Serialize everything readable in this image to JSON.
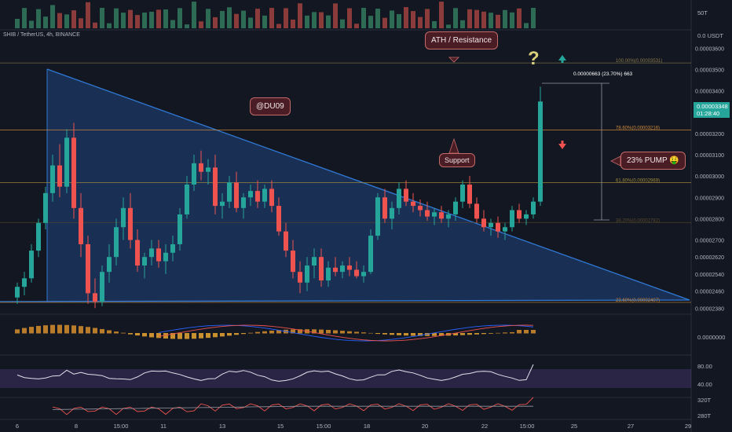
{
  "header": {
    "symbol_title": "SHIB / TetherUS, 4h, BINANCE",
    "volume_label": "50T",
    "currency_label": "0.0 USDT"
  },
  "price_axis": {
    "ticks": [
      "0.00003600",
      "0.00003500",
      "0.00003400",
      "0.00003300",
      "0.00003200",
      "0.00003100",
      "0.00003000",
      "0.00002900",
      "0.00002800",
      "0.00002700",
      "0.00002620",
      "0.00002540",
      "0.00002460",
      "0.00002380"
    ],
    "current_price": "0.00003348",
    "countdown": "01:28:40"
  },
  "time_axis": {
    "labels": [
      "6",
      "8",
      "15:00",
      "11",
      "13",
      "15",
      "15:00",
      "18",
      "20",
      "22",
      "15:00",
      "25",
      "27",
      "29"
    ]
  },
  "indicator_axes": {
    "macd_label": "0.0000000",
    "rsi_high": "80.00",
    "rsi_low": "40.00",
    "vol_label": "320T",
    "vol_label2": "280T"
  },
  "annotations": {
    "ath": "ATH / Resistance",
    "watermark": "@DU09",
    "support": "Support",
    "pump": "23% PUMP 🤑",
    "question": "?",
    "measure": "0.00000663 (23.70%) 663"
  },
  "fib_levels": [
    {
      "label": "100.00%(0.00003531)",
      "color": "#8a7a4a"
    },
    {
      "label": "78.60%(0.00003216)",
      "color": "#d08a3a"
    },
    {
      "label": "61.80%(0.00002969)",
      "color": "#a08a3a"
    },
    {
      "label": "38.20%(0.00002782)",
      "color": "#5a4a2a"
    },
    {
      "label": "23.60%(0.00002407)",
      "color": "#d08a3a"
    }
  ],
  "colors": {
    "up": "#26a69a",
    "down": "#ef5350",
    "triangle": "#2a6ec9",
    "callout_bg": "#4a1c24"
  },
  "chart_data": {
    "type": "candlestick",
    "title": "SHIB / TetherUS, 4h, BINANCE",
    "ylim": [
      2.37e-05,
      3.62e-05
    ],
    "fib_values": [
      3.531e-05,
      3.216e-05,
      2.969e-05,
      2.782e-05,
      2.407e-05
    ],
    "candles": [
      [
        2.43e-05,
        2.5e-05,
        2.4e-05,
        2.48e-05
      ],
      [
        2.48e-05,
        2.55e-05,
        2.44e-05,
        2.52e-05
      ],
      [
        2.52e-05,
        2.68e-05,
        2.5e-05,
        2.65e-05
      ],
      [
        2.65e-05,
        2.8e-05,
        2.62e-05,
        2.78e-05
      ],
      [
        2.78e-05,
        2.95e-05,
        2.75e-05,
        2.92e-05
      ],
      [
        2.92e-05,
        3.1e-05,
        2.88e-05,
        3.05e-05
      ],
      [
        3.05e-05,
        3.15e-05,
        2.9e-05,
        2.95e-05
      ],
      [
        2.95e-05,
        3.22e-05,
        2.92e-05,
        3.18e-05
      ],
      [
        3.18e-05,
        3.25e-05,
        2.8e-05,
        2.85e-05
      ],
      [
        2.85e-05,
        2.92e-05,
        2.62e-05,
        2.68e-05
      ],
      [
        2.68e-05,
        2.72e-05,
        2.4e-05,
        2.45e-05
      ],
      [
        2.45e-05,
        2.52e-05,
        2.38e-05,
        2.41e-05
      ],
      [
        2.41e-05,
        2.58e-05,
        2.39e-05,
        2.55e-05
      ],
      [
        2.55e-05,
        2.68e-05,
        2.5e-05,
        2.62e-05
      ],
      [
        2.62e-05,
        2.8e-05,
        2.58e-05,
        2.76e-05
      ],
      [
        2.76e-05,
        2.9e-05,
        2.7e-05,
        2.85e-05
      ],
      [
        2.85e-05,
        2.92e-05,
        2.66e-05,
        2.7e-05
      ],
      [
        2.7e-05,
        2.75e-05,
        2.55e-05,
        2.58e-05
      ],
      [
        2.58e-05,
        2.64e-05,
        2.52e-05,
        2.62e-05
      ],
      [
        2.62e-05,
        2.7e-05,
        2.58e-05,
        2.66e-05
      ],
      [
        2.66e-05,
        2.7e-05,
        2.57e-05,
        2.6e-05
      ],
      [
        2.6e-05,
        2.68e-05,
        2.54e-05,
        2.64e-05
      ],
      [
        2.64e-05,
        2.72e-05,
        2.6e-05,
        2.68e-05
      ],
      [
        2.68e-05,
        2.85e-05,
        2.65e-05,
        2.82e-05
      ],
      [
        2.82e-05,
        3e-05,
        2.8e-05,
        2.96e-05
      ],
      [
        2.96e-05,
        3.1e-05,
        2.93e-05,
        3.06e-05
      ],
      [
        3.06e-05,
        3.12e-05,
        2.98e-05,
        3.02e-05
      ],
      [
        3.02e-05,
        3.08e-05,
        2.96e-05,
        3.04e-05
      ],
      [
        3.04e-05,
        3.1e-05,
        2.82e-05,
        2.86e-05
      ],
      [
        2.86e-05,
        2.92e-05,
        2.8e-05,
        2.88e-05
      ],
      [
        2.88e-05,
        3e-05,
        2.85e-05,
        2.97e-05
      ],
      [
        2.97e-05,
        3.02e-05,
        2.83e-05,
        2.85e-05
      ],
      [
        2.85e-05,
        2.92e-05,
        2.8e-05,
        2.9e-05
      ],
      [
        2.9e-05,
        2.96e-05,
        2.86e-05,
        2.93e-05
      ],
      [
        2.93e-05,
        2.98e-05,
        2.85e-05,
        2.88e-05
      ],
      [
        2.88e-05,
        2.96e-05,
        2.85e-05,
        2.94e-05
      ],
      [
        2.94e-05,
        2.98e-05,
        2.83e-05,
        2.86e-05
      ],
      [
        2.86e-05,
        2.9e-05,
        2.72e-05,
        2.74e-05
      ],
      [
        2.74e-05,
        2.78e-05,
        2.62e-05,
        2.65e-05
      ],
      [
        2.65e-05,
        2.7e-05,
        2.52e-05,
        2.55e-05
      ],
      [
        2.55e-05,
        2.6e-05,
        2.45e-05,
        2.5e-05
      ],
      [
        2.5e-05,
        2.62e-05,
        2.46e-05,
        2.58e-05
      ],
      [
        2.58e-05,
        2.66e-05,
        2.52e-05,
        2.62e-05
      ],
      [
        2.62e-05,
        2.66e-05,
        2.48e-05,
        2.51e-05
      ],
      [
        2.51e-05,
        2.6e-05,
        2.48e-05,
        2.57e-05
      ],
      [
        2.57e-05,
        2.62e-05,
        2.53e-05,
        2.55e-05
      ],
      [
        2.55e-05,
        2.6e-05,
        2.52e-05,
        2.58e-05
      ],
      [
        2.58e-05,
        2.62e-05,
        2.53e-05,
        2.56e-05
      ],
      [
        2.56e-05,
        2.6e-05,
        2.52e-05,
        2.53e-05
      ],
      [
        2.53e-05,
        2.58e-05,
        2.5e-05,
        2.55e-05
      ],
      [
        2.55e-05,
        2.75e-05,
        2.54e-05,
        2.72e-05
      ],
      [
        2.72e-05,
        2.92e-05,
        2.7e-05,
        2.9e-05
      ],
      [
        2.9e-05,
        2.94e-05,
        2.78e-05,
        2.8e-05
      ],
      [
        2.8e-05,
        2.88e-05,
        2.75e-05,
        2.85e-05
      ],
      [
        2.85e-05,
        2.97e-05,
        2.82e-05,
        2.94e-05
      ],
      [
        2.94e-05,
        2.98e-05,
        2.86e-05,
        2.88e-05
      ],
      [
        2.88e-05,
        2.92e-05,
        2.83e-05,
        2.86e-05
      ],
      [
        2.86e-05,
        2.89e-05,
        2.81e-05,
        2.84e-05
      ],
      [
        2.84e-05,
        2.88e-05,
        2.79e-05,
        2.81e-05
      ],
      [
        2.81e-05,
        2.85e-05,
        2.77e-05,
        2.83e-05
      ],
      [
        2.83e-05,
        2.86e-05,
        2.78e-05,
        2.8e-05
      ],
      [
        2.8e-05,
        2.84e-05,
        2.76e-05,
        2.82e-05
      ],
      [
        2.82e-05,
        2.9e-05,
        2.79e-05,
        2.88e-05
      ],
      [
        2.88e-05,
        2.98e-05,
        2.85e-05,
        2.96e-05
      ],
      [
        2.96e-05,
        3e-05,
        2.85e-05,
        2.87e-05
      ],
      [
        2.87e-05,
        2.9e-05,
        2.78e-05,
        2.8e-05
      ],
      [
        2.8e-05,
        2.84e-05,
        2.74e-05,
        2.76e-05
      ],
      [
        2.76e-05,
        2.8e-05,
        2.72e-05,
        2.78e-05
      ],
      [
        2.78e-05,
        2.81e-05,
        2.71e-05,
        2.74e-05
      ],
      [
        2.74e-05,
        2.78e-05,
        2.7e-05,
        2.76e-05
      ],
      [
        2.76e-05,
        2.86e-05,
        2.74e-05,
        2.84e-05
      ],
      [
        2.84e-05,
        2.87e-05,
        2.78e-05,
        2.8e-05
      ],
      [
        2.8e-05,
        2.84e-05,
        2.77e-05,
        2.82e-05
      ],
      [
        2.82e-05,
        2.9e-05,
        2.8e-05,
        2.88e-05
      ],
      [
        2.88e-05,
        3.42e-05,
        2.86e-05,
        3.35e-05
      ]
    ]
  }
}
